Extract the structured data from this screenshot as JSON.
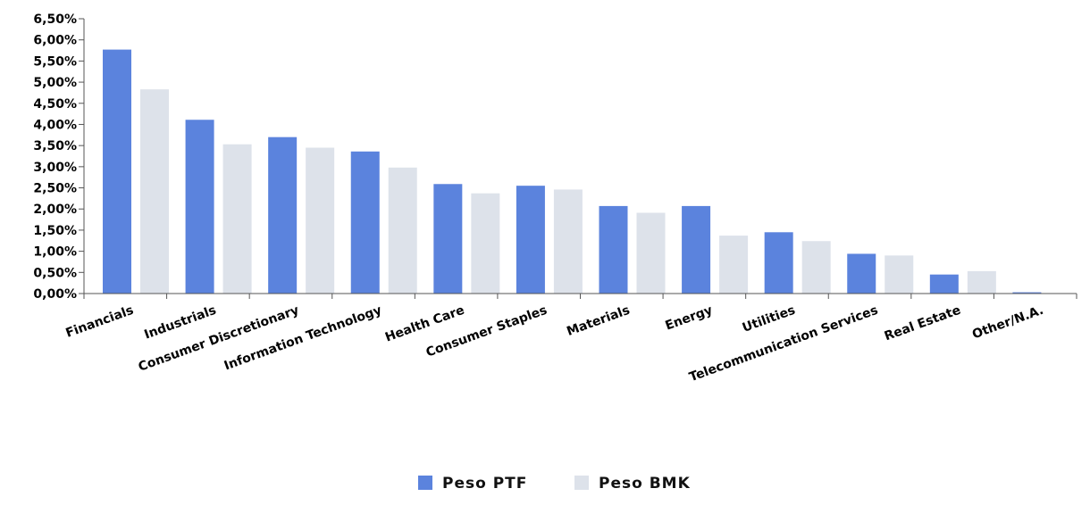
{
  "chart_data": {
    "type": "bar",
    "categories": [
      "Financials",
      "Industrials",
      "Consumer Discretionary",
      "Information Technology",
      "Health Care",
      "Consumer Staples",
      "Materials",
      "Energy",
      "Utilities",
      "Telecommunication Services",
      "Real Estate",
      "Other/N.A."
    ],
    "series": [
      {
        "name": "Peso PTF",
        "color": "#5b83dd",
        "values": [
          5.77,
          4.11,
          3.7,
          3.36,
          2.59,
          2.55,
          2.07,
          2.07,
          1.45,
          0.94,
          0.45,
          0.03
        ]
      },
      {
        "name": "Peso BMK",
        "color": "#dde2ea",
        "values": [
          4.83,
          3.53,
          3.45,
          2.98,
          2.37,
          2.46,
          1.91,
          1.37,
          1.24,
          0.9,
          0.53,
          0.0
        ]
      }
    ],
    "ylim": [
      0,
      6.5
    ],
    "ytick_labels": [
      "0,00%",
      "0,50%",
      "1,00%",
      "1,50%",
      "2,00%",
      "2,50%",
      "3,00%",
      "3,50%",
      "4,00%",
      "4,50%",
      "5,00%",
      "5,50%",
      "6,00%",
      "6,50%"
    ],
    "title": "",
    "xlabel": "",
    "ylabel": "",
    "grid": false,
    "legend_position": "bottom-center"
  }
}
